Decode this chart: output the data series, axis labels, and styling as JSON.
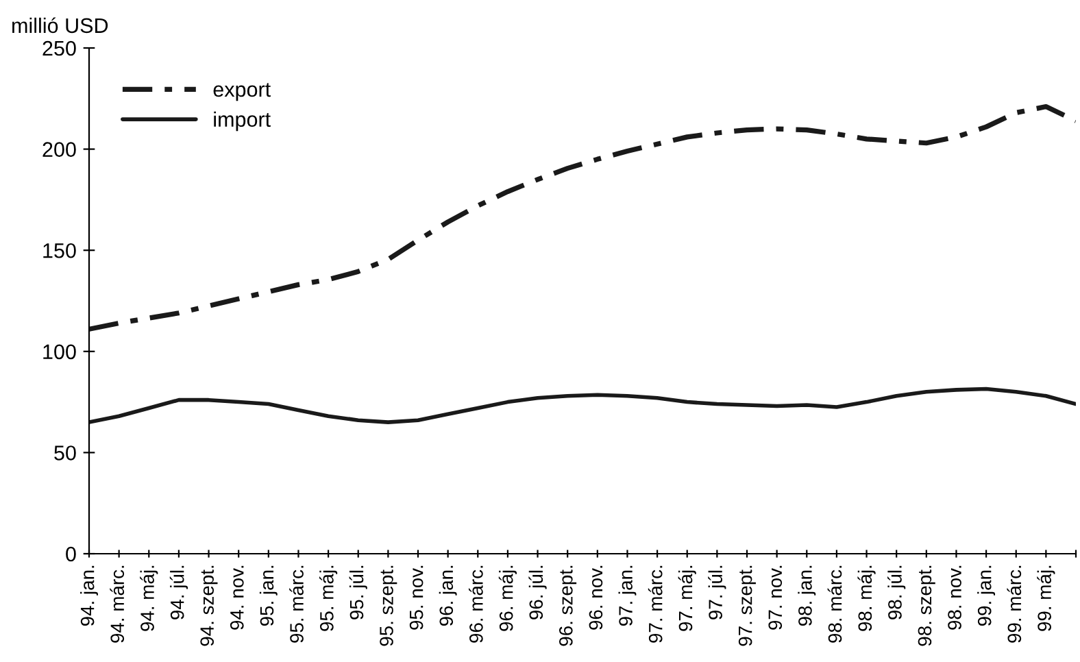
{
  "chart_data": {
    "type": "line",
    "ylabel": "millió USD",
    "categories": [
      "94. jan.",
      "94. márc.",
      "94. máj.",
      "94. júl.",
      "94. szept.",
      "94. nov.",
      "95. jan.",
      "95. márc.",
      "95. máj.",
      "95. júl.",
      "95. szept.",
      "95. nov.",
      "96. jan.",
      "96. márc.",
      "96. máj.",
      "96. júl.",
      "96. szept.",
      "96. nov.",
      "97. jan.",
      "97. márc.",
      "97. máj.",
      "97. júl.",
      "97. szept.",
      "97. nov.",
      "98. jan.",
      "98. márc.",
      "98. máj.",
      "98. júl.",
      "98. szept.",
      "98. nov.",
      "99. jan.",
      "99. márc.",
      "99. máj.",
      null
    ],
    "series": [
      {
        "name": "export",
        "color": "#1a1a1a",
        "line_style": "dashdot",
        "values": [
          111,
          114,
          116.5,
          119,
          122.5,
          126,
          129.5,
          133,
          135.5,
          139.5,
          145.5,
          155,
          164,
          172,
          179,
          185,
          190.5,
          195,
          199,
          202.5,
          206,
          208,
          209.5,
          210,
          209.5,
          207.5,
          205,
          204,
          203,
          206,
          211,
          218,
          221,
          214
        ]
      },
      {
        "name": "import",
        "color": "#1a1a1a",
        "line_style": "solid",
        "values": [
          65,
          68,
          72,
          76,
          76,
          75,
          74,
          71,
          68,
          66,
          65,
          66,
          69,
          72,
          75,
          77,
          78,
          78.5,
          78,
          77,
          75,
          74,
          73.5,
          73,
          73.5,
          72.5,
          75,
          78,
          80,
          81,
          81.5,
          80,
          78,
          74
        ]
      }
    ],
    "ylim": [
      0,
      250
    ],
    "yticks": [
      0,
      50,
      100,
      150,
      200,
      250
    ],
    "grid": false,
    "legend": "top left",
    "marker": "none"
  }
}
